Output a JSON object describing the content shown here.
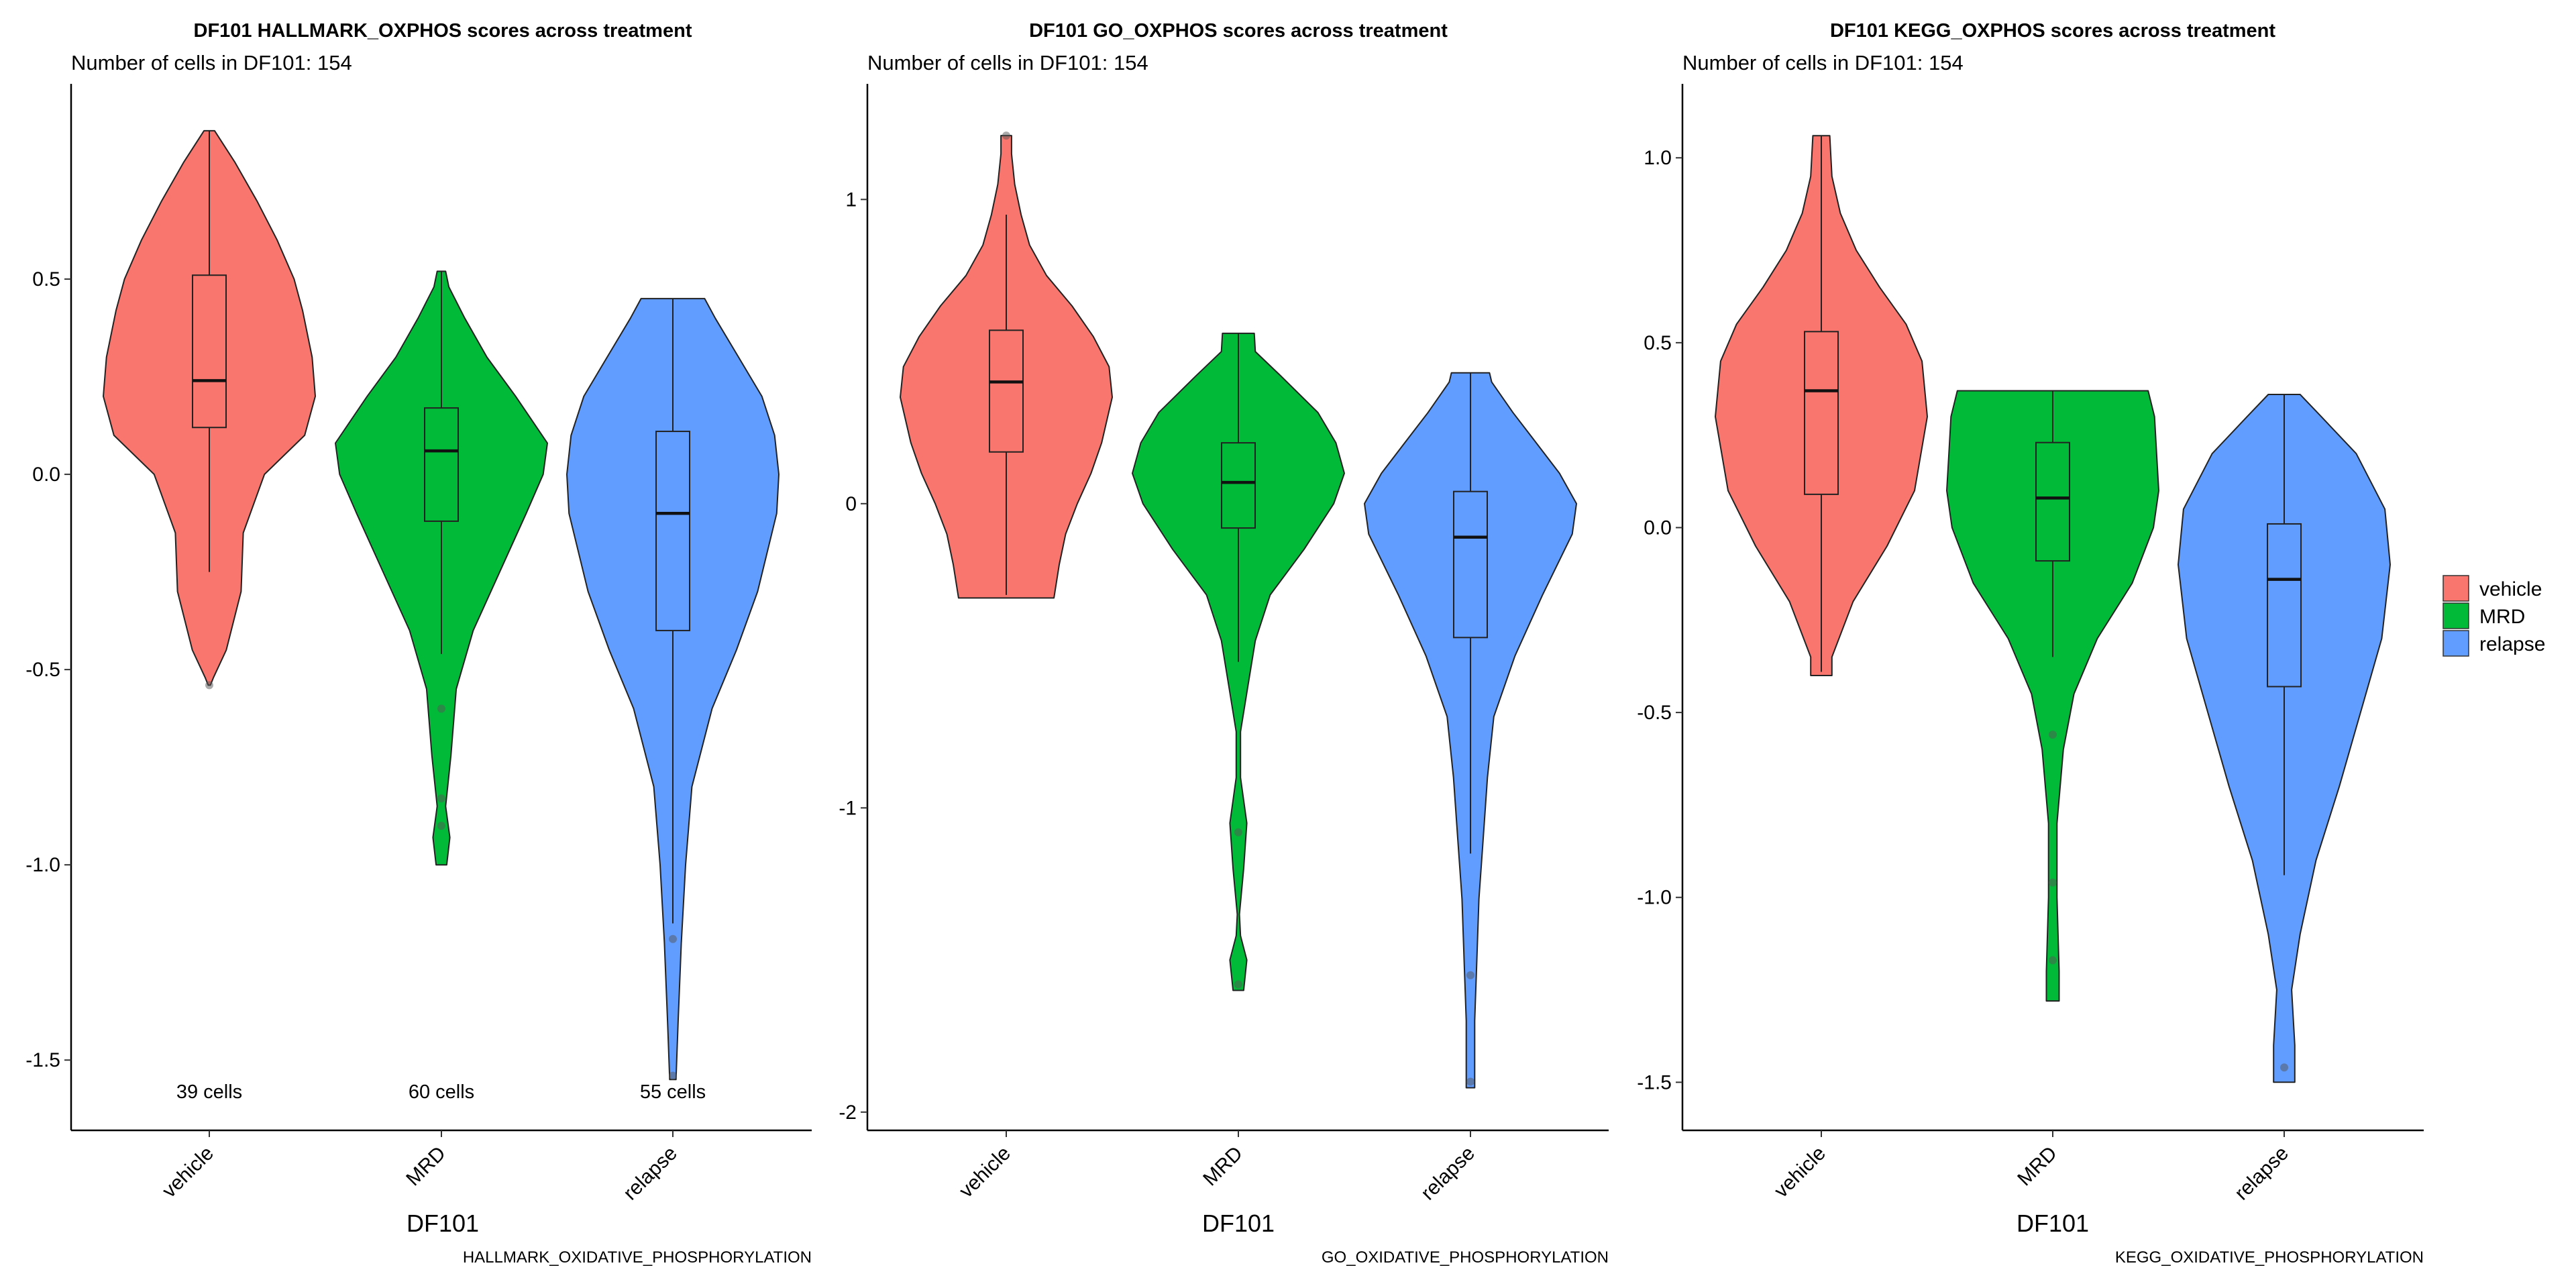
{
  "legend": {
    "entries": [
      {
        "label": "vehicle",
        "color": "#F8766D"
      },
      {
        "label": "MRD",
        "color": "#00BA38"
      },
      {
        "label": "relapse",
        "color": "#619CFF"
      }
    ]
  },
  "chart_data": [
    {
      "type": "violin",
      "title": "DF101 HALLMARK_OXPHOS scores across treatment",
      "subtitle": "Number of cells in DF101: 154",
      "xlabel": "DF101",
      "caption": "HALLMARK_OXIDATIVE_PHOSPHORYLATION",
      "ylabel": "",
      "ylim": [
        -1.68,
        1.0
      ],
      "yticks": [
        -1.5,
        -1.0,
        -0.5,
        0.0,
        0.5
      ],
      "ytick_labels": [
        "-1.5",
        "-1.0",
        "-0.5",
        "0.0",
        "0.5"
      ],
      "categories": [
        "vehicle",
        "MRD",
        "relapse"
      ],
      "cell_counts": [
        "39 cells",
        "60 cells",
        "55 cells"
      ],
      "count_label_y": -1.58,
      "groups": [
        {
          "name": "vehicle",
          "color": "#F8766D",
          "box": {
            "whisker_low": -0.25,
            "q1": 0.12,
            "median": 0.24,
            "q3": 0.51,
            "whisker_high": 0.88
          },
          "outliers": [
            -0.54
          ],
          "density": [
            [
              -0.54,
              0.01
            ],
            [
              -0.52,
              0.04
            ],
            [
              -0.45,
              0.16
            ],
            [
              -0.3,
              0.3
            ],
            [
              -0.15,
              0.32
            ],
            [
              0.0,
              0.52
            ],
            [
              0.1,
              0.9
            ],
            [
              0.2,
              1.0
            ],
            [
              0.3,
              0.97
            ],
            [
              0.42,
              0.88
            ],
            [
              0.5,
              0.8
            ],
            [
              0.6,
              0.64
            ],
            [
              0.7,
              0.45
            ],
            [
              0.8,
              0.24
            ],
            [
              0.88,
              0.05
            ]
          ]
        },
        {
          "name": "MRD",
          "color": "#00BA38",
          "box": {
            "whisker_low": -0.46,
            "q1": -0.12,
            "median": 0.06,
            "q3": 0.17,
            "whisker_high": 0.52
          },
          "outliers": [
            -0.6,
            -0.83,
            -0.9
          ],
          "density": [
            [
              -1.0,
              0.05
            ],
            [
              -0.93,
              0.08
            ],
            [
              -0.85,
              0.04
            ],
            [
              -0.72,
              0.09
            ],
            [
              -0.55,
              0.14
            ],
            [
              -0.4,
              0.3
            ],
            [
              -0.25,
              0.55
            ],
            [
              -0.1,
              0.8
            ],
            [
              0.0,
              0.96
            ],
            [
              0.08,
              1.0
            ],
            [
              0.2,
              0.7
            ],
            [
              0.3,
              0.43
            ],
            [
              0.4,
              0.22
            ],
            [
              0.48,
              0.07
            ],
            [
              0.52,
              0.04
            ]
          ]
        },
        {
          "name": "relapse",
          "color": "#619CFF",
          "box": {
            "whisker_low": -1.15,
            "q1": -0.4,
            "median": -0.1,
            "q3": 0.11,
            "whisker_high": 0.45
          },
          "outliers": [
            -1.19,
            -1.54
          ],
          "density": [
            [
              -1.55,
              0.03
            ],
            [
              -1.4,
              0.05
            ],
            [
              -1.2,
              0.08
            ],
            [
              -1.0,
              0.12
            ],
            [
              -0.8,
              0.18
            ],
            [
              -0.6,
              0.37
            ],
            [
              -0.45,
              0.6
            ],
            [
              -0.3,
              0.8
            ],
            [
              -0.1,
              0.98
            ],
            [
              0.0,
              1.0
            ],
            [
              0.1,
              0.96
            ],
            [
              0.2,
              0.84
            ],
            [
              0.3,
              0.62
            ],
            [
              0.4,
              0.4
            ],
            [
              0.45,
              0.3
            ]
          ]
        }
      ]
    },
    {
      "type": "violin",
      "title": "DF101 GO_OXPHOS scores across treatment",
      "subtitle": "Number of cells in DF101: 154",
      "xlabel": "DF101",
      "caption": "GO_OXIDATIVE_PHOSPHORYLATION",
      "ylabel": "",
      "ylim": [
        -2.06,
        1.38
      ],
      "yticks": [
        -2,
        -1,
        0,
        1
      ],
      "ytick_labels": [
        "-2",
        "-1",
        "0",
        "1"
      ],
      "categories": [
        "vehicle",
        "MRD",
        "relapse"
      ],
      "groups": [
        {
          "name": "vehicle",
          "color": "#F8766D",
          "box": {
            "whisker_low": -0.3,
            "q1": 0.17,
            "median": 0.4,
            "q3": 0.57,
            "whisker_high": 0.95
          },
          "outliers": [
            1.21
          ],
          "density": [
            [
              -0.31,
              0.45
            ],
            [
              -0.2,
              0.5
            ],
            [
              -0.1,
              0.56
            ],
            [
              0.0,
              0.67
            ],
            [
              0.1,
              0.8
            ],
            [
              0.2,
              0.9
            ],
            [
              0.35,
              1.0
            ],
            [
              0.45,
              0.97
            ],
            [
              0.55,
              0.82
            ],
            [
              0.65,
              0.62
            ],
            [
              0.75,
              0.38
            ],
            [
              0.85,
              0.22
            ],
            [
              0.95,
              0.14
            ],
            [
              1.05,
              0.08
            ],
            [
              1.15,
              0.05
            ],
            [
              1.21,
              0.05
            ]
          ]
        },
        {
          "name": "MRD",
          "color": "#00BA38",
          "box": {
            "whisker_low": -0.52,
            "q1": -0.08,
            "median": 0.07,
            "q3": 0.2,
            "whisker_high": 0.56
          },
          "outliers": [
            -1.08,
            -1.58
          ],
          "density": [
            [
              -1.6,
              0.05
            ],
            [
              -1.5,
              0.08
            ],
            [
              -1.42,
              0.02
            ],
            [
              -1.35,
              0.01
            ],
            [
              -1.2,
              0.05
            ],
            [
              -1.05,
              0.08
            ],
            [
              -0.9,
              0.02
            ],
            [
              -0.75,
              0.02
            ],
            [
              -0.6,
              0.09
            ],
            [
              -0.45,
              0.16
            ],
            [
              -0.3,
              0.3
            ],
            [
              -0.15,
              0.62
            ],
            [
              0.0,
              0.9
            ],
            [
              0.1,
              1.0
            ],
            [
              0.2,
              0.92
            ],
            [
              0.3,
              0.75
            ],
            [
              0.42,
              0.4
            ],
            [
              0.5,
              0.16
            ],
            [
              0.56,
              0.15
            ]
          ]
        },
        {
          "name": "relapse",
          "color": "#619CFF",
          "box": {
            "whisker_low": -1.15,
            "q1": -0.44,
            "median": -0.11,
            "q3": 0.04,
            "whisker_high": 0.43
          },
          "outliers": [
            -1.55,
            -1.9
          ],
          "density": [
            [
              -1.92,
              0.04
            ],
            [
              -1.7,
              0.04
            ],
            [
              -1.5,
              0.06
            ],
            [
              -1.3,
              0.08
            ],
            [
              -1.1,
              0.12
            ],
            [
              -0.9,
              0.16
            ],
            [
              -0.7,
              0.22
            ],
            [
              -0.5,
              0.42
            ],
            [
              -0.3,
              0.68
            ],
            [
              -0.1,
              0.96
            ],
            [
              0.0,
              1.0
            ],
            [
              0.1,
              0.84
            ],
            [
              0.2,
              0.62
            ],
            [
              0.3,
              0.4
            ],
            [
              0.4,
              0.2
            ],
            [
              0.43,
              0.18
            ]
          ]
        }
      ]
    },
    {
      "type": "violin",
      "title": "DF101 KEGG_OXPHOS scores across treatment",
      "subtitle": "Number of cells in DF101: 154",
      "xlabel": "DF101",
      "caption": "KEGG_OXIDATIVE_PHOSPHORYLATION",
      "ylabel": "",
      "ylim": [
        -1.63,
        1.2
      ],
      "yticks": [
        -1.5,
        -1.0,
        -0.5,
        0.0,
        0.5,
        1.0
      ],
      "ytick_labels": [
        "-1.5",
        "-1.0",
        "-0.5",
        "0.0",
        "0.5",
        "1.0"
      ],
      "categories": [
        "vehicle",
        "MRD",
        "relapse"
      ],
      "groups": [
        {
          "name": "vehicle",
          "color": "#F8766D",
          "box": {
            "whisker_low": -0.39,
            "q1": 0.09,
            "median": 0.37,
            "q3": 0.53,
            "whisker_high": 1.06
          },
          "outliers": [],
          "density": [
            [
              -0.4,
              0.1
            ],
            [
              -0.35,
              0.1
            ],
            [
              -0.2,
              0.3
            ],
            [
              -0.05,
              0.62
            ],
            [
              0.1,
              0.88
            ],
            [
              0.3,
              1.0
            ],
            [
              0.45,
              0.95
            ],
            [
              0.55,
              0.8
            ],
            [
              0.65,
              0.55
            ],
            [
              0.75,
              0.33
            ],
            [
              0.85,
              0.18
            ],
            [
              0.95,
              0.1
            ],
            [
              1.06,
              0.08
            ]
          ]
        },
        {
          "name": "MRD",
          "color": "#00BA38",
          "box": {
            "whisker_low": -0.35,
            "q1": -0.09,
            "median": 0.08,
            "q3": 0.23,
            "whisker_high": 0.37
          },
          "outliers": [
            -0.56,
            -0.96,
            -1.17
          ],
          "density": [
            [
              -1.28,
              0.06
            ],
            [
              -1.2,
              0.06
            ],
            [
              -1.0,
              0.04
            ],
            [
              -0.8,
              0.04
            ],
            [
              -0.6,
              0.1
            ],
            [
              -0.45,
              0.2
            ],
            [
              -0.3,
              0.42
            ],
            [
              -0.15,
              0.75
            ],
            [
              0.0,
              0.95
            ],
            [
              0.1,
              1.0
            ],
            [
              0.2,
              0.98
            ],
            [
              0.3,
              0.96
            ],
            [
              0.37,
              0.9
            ]
          ]
        },
        {
          "name": "relapse",
          "color": "#619CFF",
          "box": {
            "whisker_low": -0.94,
            "q1": -0.43,
            "median": -0.14,
            "q3": 0.01,
            "whisker_high": 0.36
          },
          "outliers": [
            -1.46
          ],
          "density": [
            [
              -1.5,
              0.1
            ],
            [
              -1.4,
              0.1
            ],
            [
              -1.25,
              0.07
            ],
            [
              -1.1,
              0.15
            ],
            [
              -0.9,
              0.3
            ],
            [
              -0.7,
              0.52
            ],
            [
              -0.5,
              0.72
            ],
            [
              -0.3,
              0.92
            ],
            [
              -0.1,
              1.0
            ],
            [
              0.05,
              0.95
            ],
            [
              0.2,
              0.68
            ],
            [
              0.3,
              0.35
            ],
            [
              0.36,
              0.15
            ]
          ]
        }
      ]
    }
  ]
}
